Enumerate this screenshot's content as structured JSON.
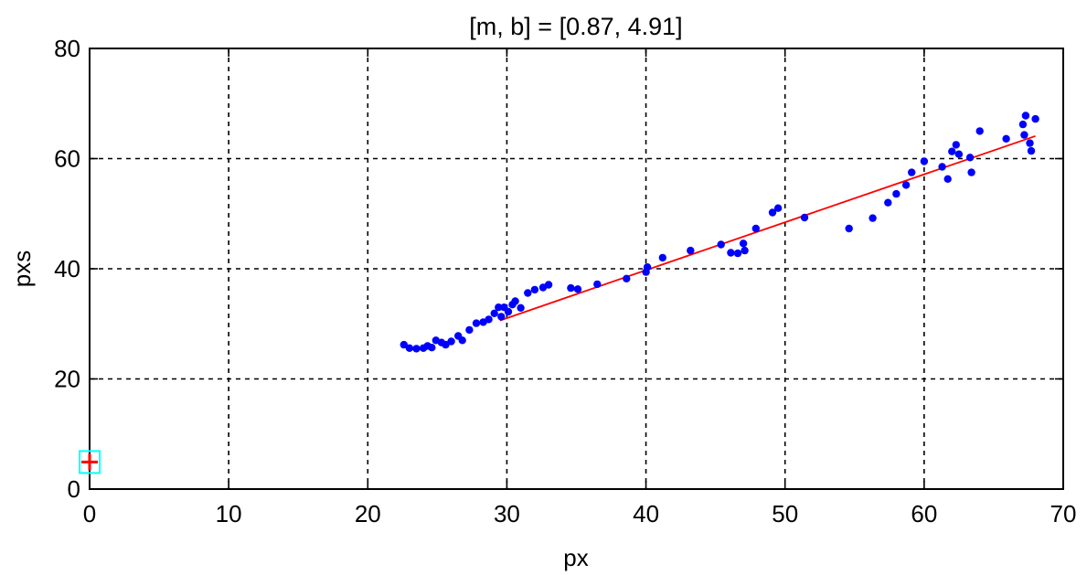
{
  "chart_data": {
    "type": "scatter",
    "title": "[m, b] =  [0.87, 4.91]",
    "xlabel": "px",
    "ylabel": "pxs",
    "xlim": [
      0,
      70
    ],
    "ylim": [
      0,
      80
    ],
    "xticks": [
      0,
      10,
      20,
      30,
      40,
      50,
      60,
      70
    ],
    "yticks": [
      0,
      20,
      40,
      60,
      80
    ],
    "grid": true,
    "grid_style": "dashed",
    "series": [
      {
        "kind": "scatter",
        "color": "#0000ff",
        "points": [
          [
            22.6,
            26.2
          ],
          [
            23.0,
            25.6
          ],
          [
            23.5,
            25.5
          ],
          [
            24.0,
            25.6
          ],
          [
            24.3,
            26.0
          ],
          [
            24.6,
            25.7
          ],
          [
            24.9,
            27.0
          ],
          [
            25.3,
            26.6
          ],
          [
            25.6,
            26.2
          ],
          [
            26.0,
            26.8
          ],
          [
            26.5,
            27.8
          ],
          [
            26.8,
            27.0
          ],
          [
            27.3,
            28.9
          ],
          [
            27.8,
            30.1
          ],
          [
            28.3,
            30.3
          ],
          [
            28.7,
            30.8
          ],
          [
            29.1,
            31.9
          ],
          [
            29.4,
            33.0
          ],
          [
            29.6,
            31.3
          ],
          [
            29.8,
            33.0
          ],
          [
            30.1,
            32.2
          ],
          [
            30.4,
            33.5
          ],
          [
            30.6,
            34.1
          ],
          [
            31.0,
            32.9
          ],
          [
            31.5,
            35.6
          ],
          [
            32.0,
            36.2
          ],
          [
            32.6,
            36.6
          ],
          [
            33.0,
            37.1
          ],
          [
            34.6,
            36.5
          ],
          [
            35.1,
            36.3
          ],
          [
            36.5,
            37.2
          ],
          [
            38.6,
            38.2
          ],
          [
            40.0,
            39.4
          ],
          [
            40.1,
            40.3
          ],
          [
            41.2,
            42.0
          ],
          [
            43.2,
            43.3
          ],
          [
            45.4,
            44.4
          ],
          [
            46.1,
            42.9
          ],
          [
            46.6,
            42.8
          ],
          [
            47.0,
            44.6
          ],
          [
            47.1,
            43.3
          ],
          [
            47.9,
            47.3
          ],
          [
            49.1,
            50.2
          ],
          [
            49.5,
            51.0
          ],
          [
            51.4,
            49.3
          ],
          [
            54.6,
            47.3
          ],
          [
            56.3,
            49.2
          ],
          [
            57.4,
            52.0
          ],
          [
            58.0,
            53.6
          ],
          [
            58.7,
            55.2
          ],
          [
            59.1,
            57.5
          ],
          [
            60.0,
            59.5
          ],
          [
            61.3,
            58.5
          ],
          [
            61.7,
            56.3
          ],
          [
            62.0,
            61.3
          ],
          [
            62.3,
            62.5
          ],
          [
            62.5,
            60.8
          ],
          [
            63.3,
            60.2
          ],
          [
            63.4,
            57.5
          ],
          [
            64.0,
            65.0
          ],
          [
            65.9,
            63.6
          ],
          [
            67.1,
            66.2
          ],
          [
            67.3,
            67.8
          ],
          [
            67.6,
            62.8
          ],
          [
            67.7,
            61.4
          ],
          [
            68.0,
            67.2
          ],
          [
            67.2,
            64.3
          ]
        ]
      },
      {
        "kind": "line",
        "color": "#ff0000",
        "x": [
          29.5,
          68.0
        ],
        "y": [
          30.6,
          64.1
        ]
      },
      {
        "kind": "marker",
        "color": "#ff0000",
        "outline_color": "#00ffff",
        "x": [
          0
        ],
        "y": [
          4.91
        ]
      }
    ]
  }
}
